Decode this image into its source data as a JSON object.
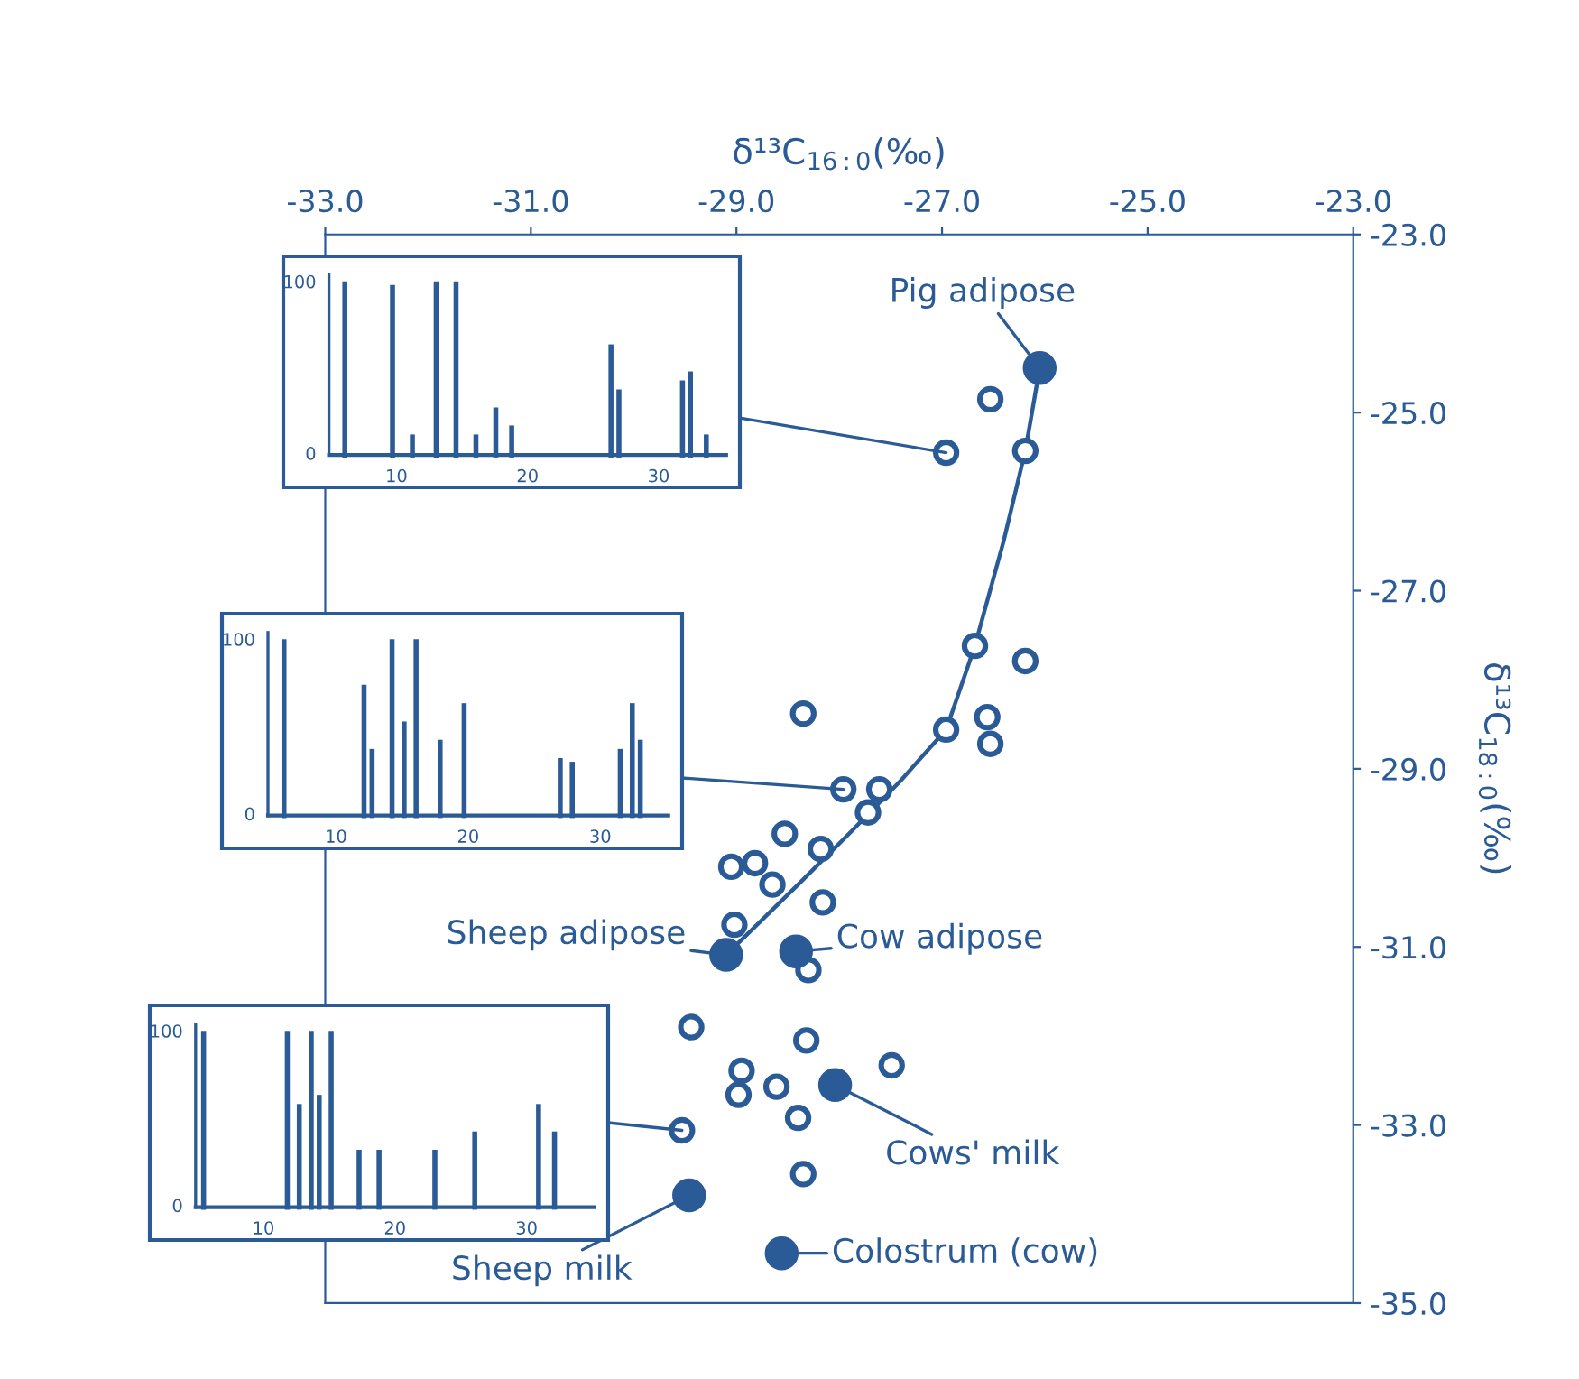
{
  "chart_data": {
    "type": "scatter",
    "xlabel": "δ¹³C$_{16:0}$(‰)",
    "ylabel": "δ¹³C$_{18:0}$(‰)",
    "xlim": [
      -33,
      -23
    ],
    "ylim": [
      -35,
      -23
    ],
    "xticks": [
      {
        "value": -33,
        "label": "-33.0"
      },
      {
        "value": -31,
        "label": "-31.0"
      },
      {
        "value": -29,
        "label": "-29.0"
      },
      {
        "value": -27,
        "label": "-27.0"
      },
      {
        "value": -25,
        "label": "-25.0"
      },
      {
        "value": -23,
        "label": "-23.0"
      }
    ],
    "yticks": [
      {
        "value": -23,
        "label": "-23.0"
      },
      {
        "value": -25,
        "label": "-25.0"
      },
      {
        "value": -27,
        "label": "-27.0"
      },
      {
        "value": -29,
        "label": "-29.0"
      },
      {
        "value": -31,
        "label": "-31.0"
      },
      {
        "value": -33,
        "label": "-33.0"
      },
      {
        "value": -35,
        "label": "-35.0"
      }
    ],
    "grid": false,
    "legend": false,
    "series": [
      {
        "type": "scatter",
        "marker": "circle",
        "color": "#2b5b96",
        "x": [
          -26.53,
          -26.96,
          -26.19,
          -26.68,
          -26.19,
          -28.35,
          -26.96,
          -26.56,
          -26.53,
          -27.96,
          -27.61,
          -27.72,
          -28.53,
          -29.05,
          -28.82,
          -28.18,
          -28.65,
          -28.16,
          -29.02,
          -28.3,
          -29.44,
          -28.32,
          -27.49,
          -28.95,
          -28.98,
          -28.61,
          -28.4,
          -29.53,
          -28.35
        ],
        "values": [
          -24.85,
          -25.45,
          -25.43,
          -27.62,
          -27.79,
          -28.38,
          -28.56,
          -28.42,
          -28.72,
          -29.23,
          -29.23,
          -29.49,
          -29.73,
          -30.1,
          -30.06,
          -29.9,
          -30.3,
          -30.5,
          -30.75,
          -31.26,
          -31.9,
          -32.05,
          -32.33,
          -32.39,
          -32.66,
          -32.57,
          -32.92,
          -33.06,
          -33.55
        ]
      },
      {
        "type": "scatter",
        "marker": "circle",
        "color": "#2b5b96",
        "x": [
          -26.05,
          -29.1,
          -28.42,
          -28.04,
          -29.46,
          -28.56
        ],
        "values": [
          -24.5,
          -31.09,
          -31.05,
          -32.55,
          -33.79,
          -34.44
        ]
      },
      {
        "type": "line",
        "marker": "none",
        "line_style": "solid",
        "color": "#2b5b96",
        "x": [
          -26.05,
          -26.19,
          -26.4,
          -26.68,
          -26.96,
          -27.4,
          -27.88,
          -28.4,
          -29.1
        ],
        "values": [
          -24.5,
          -25.43,
          -26.44,
          -27.62,
          -28.56,
          -29.13,
          -29.7,
          -30.3,
          -31.09
        ]
      }
    ],
    "annotations": [
      {
        "text": "Pig adipose",
        "x": -26.05,
        "y": -24.5
      },
      {
        "text": "Sheep adipose",
        "x": -29.1,
        "y": -31.09
      },
      {
        "text": "Cow adipose",
        "x": -28.42,
        "y": -31.05
      },
      {
        "text": "Cows' milk",
        "x": -28.04,
        "y": -32.55
      },
      {
        "text": "Sheep milk",
        "x": -29.46,
        "y": -33.79
      },
      {
        "text": "Colostrum (cow)",
        "x": -28.56,
        "y": -34.44
      },
      "100",
      "0",
      "10",
      "20",
      "30",
      "100",
      "0",
      "10",
      "20",
      "30",
      "100",
      "0",
      "10",
      "20",
      "30"
    ]
  }
}
